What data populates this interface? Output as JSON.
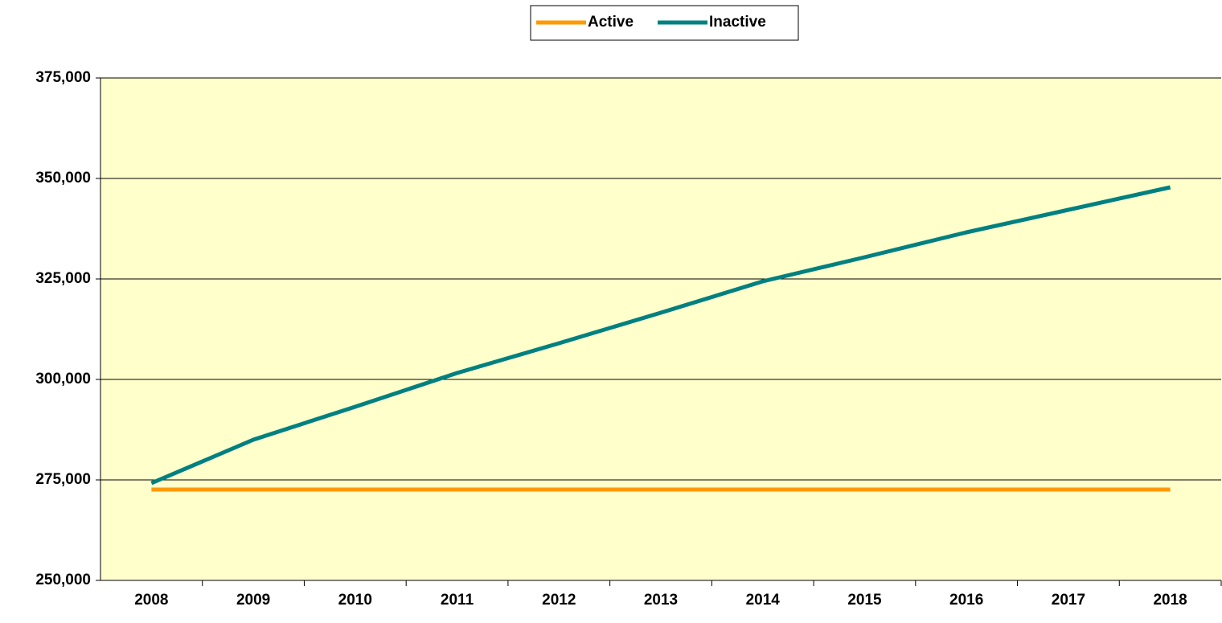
{
  "chart_data": {
    "type": "line",
    "categories": [
      "2008",
      "2009",
      "2010",
      "2011",
      "2012",
      "2013",
      "2014",
      "2015",
      "2016",
      "2017",
      "2018"
    ],
    "series": [
      {
        "name": "Active",
        "color": "#ff9900",
        "values": [
          272600,
          272600,
          272600,
          272600,
          272600,
          272600,
          272600,
          272600,
          272600,
          272600,
          272600
        ]
      },
      {
        "name": "Inactive",
        "color": "#008080",
        "values": [
          274200,
          285000,
          293200,
          301600,
          309000,
          316600,
          324400,
          330400,
          336600,
          342200,
          347800
        ]
      }
    ],
    "ylim": [
      250000,
      375000
    ],
    "yticks": [
      {
        "value": 250000,
        "label": "250,000"
      },
      {
        "value": 275000,
        "label": "275,000"
      },
      {
        "value": 300000,
        "label": "300,000"
      },
      {
        "value": 325000,
        "label": "325,000"
      },
      {
        "value": 350000,
        "label": "350,000"
      },
      {
        "value": 375000,
        "label": "375,000"
      }
    ],
    "grid": true,
    "legend": "top",
    "background": "#ffffcc"
  }
}
